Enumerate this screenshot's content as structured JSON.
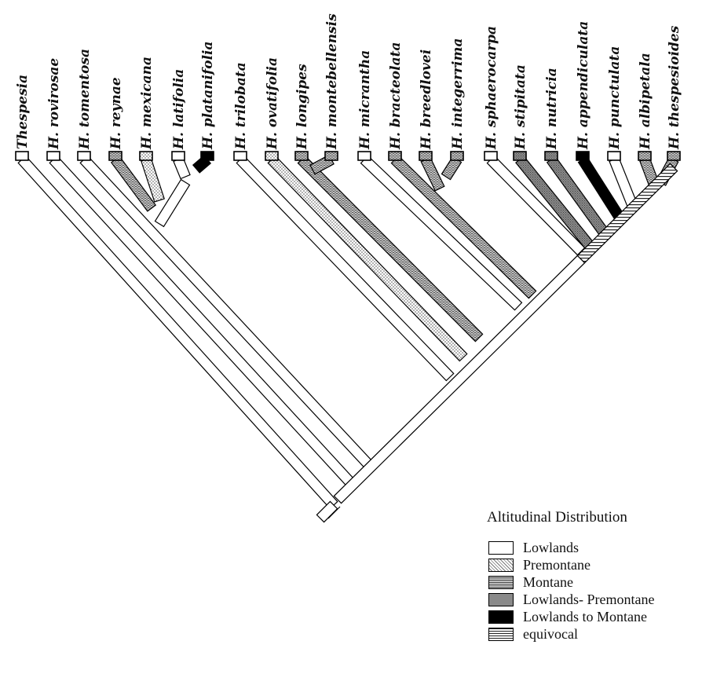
{
  "taxa": [
    {
      "label": "Thespesia",
      "state": "lowlands"
    },
    {
      "label": "H. rovirosae",
      "state": "lowlands"
    },
    {
      "label": "H. tomentosa",
      "state": "lowlands"
    },
    {
      "label": "H. reynae",
      "state": "montane"
    },
    {
      "label": "H. mexicana",
      "state": "premontane"
    },
    {
      "label": "H. latifolia",
      "state": "lowlands"
    },
    {
      "label": "H. platanifolia",
      "state": "lowlands_to_montane"
    },
    {
      "label": "H. trilobata",
      "state": "lowlands"
    },
    {
      "label": "H. ovatifolia",
      "state": "premontane"
    },
    {
      "label": "H. longipes",
      "state": "montane"
    },
    {
      "label": "H. montebellensis",
      "state": "montane"
    },
    {
      "label": "H. micrantha",
      "state": "lowlands"
    },
    {
      "label": "H. bracteolata",
      "state": "montane"
    },
    {
      "label": "H. breedlovei",
      "state": "montane"
    },
    {
      "label": "H. integerrima",
      "state": "montane"
    },
    {
      "label": "H. sphaerocarpa",
      "state": "lowlands"
    },
    {
      "label": "H. stipitata",
      "state": "lowlands_premontane"
    },
    {
      "label": "H. nutricia",
      "state": "lowlands_premontane"
    },
    {
      "label": "H. appendiculata",
      "state": "lowlands_to_montane"
    },
    {
      "label": "H. punctulata",
      "state": "lowlands"
    },
    {
      "label": "H. albipetala",
      "state": "montane"
    },
    {
      "label": "H. thespesioides",
      "state": "montane"
    }
  ],
  "legend": {
    "title": "Altitudinal Distribution",
    "items": [
      {
        "key": "lowlands",
        "label": "Lowlands"
      },
      {
        "key": "premontane",
        "label": "Premontane"
      },
      {
        "key": "montane",
        "label": "Montane"
      },
      {
        "key": "lowlands_premontane",
        "label": "Lowlands- Premontane"
      },
      {
        "key": "lowlands_to_montane",
        "label": "Lowlands to Montane"
      },
      {
        "key": "equivocal",
        "label": "equivocal"
      }
    ]
  }
}
